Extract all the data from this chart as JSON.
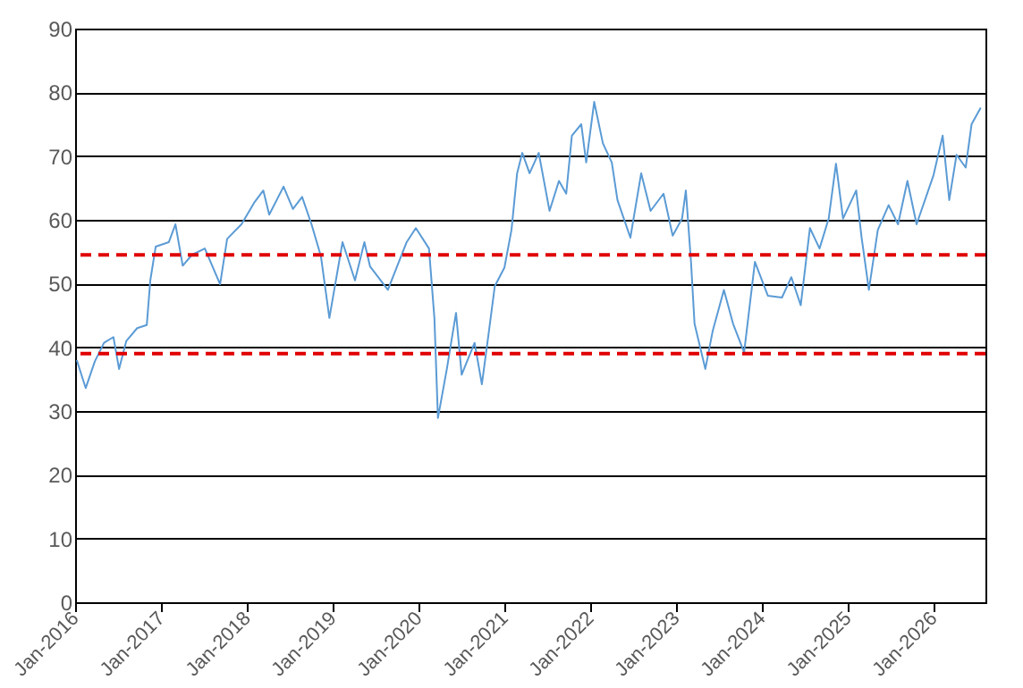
{
  "chart_data": {
    "type": "line",
    "x": [
      "2016-01-08",
      "2016-02-15",
      "2016-03-25",
      "2016-05-03",
      "2016-06-12",
      "2016-07-06",
      "2016-08-06",
      "2016-09-21",
      "2016-11-01",
      "2016-11-16",
      "2016-12-09",
      "2017-02-03",
      "2017-03-03",
      "2017-04-03",
      "2017-05-12",
      "2017-07-06",
      "2017-09-09",
      "2017-10-09",
      "2017-12-09",
      "2018-02-03",
      "2018-03-12",
      "2018-04-06",
      "2018-06-06",
      "2018-07-16",
      "2018-08-24",
      "2018-10-03",
      "2018-11-12",
      "2018-12-18",
      "2019-02-12",
      "2019-04-06",
      "2019-05-16",
      "2019-06-09",
      "2019-08-24",
      "2019-11-12",
      "2019-12-21",
      "2020-02-15",
      "2020-03-09",
      "2020-03-24",
      "2020-05-01",
      "2020-06-09",
      "2020-07-03",
      "2020-08-27",
      "2020-09-27",
      "2020-10-27",
      "2020-11-21",
      "2021-01-01",
      "2021-01-31",
      "2021-02-24",
      "2021-03-18",
      "2021-04-18",
      "2021-05-27",
      "2021-07-12",
      "2021-08-21",
      "2021-09-21",
      "2021-10-15",
      "2021-11-24",
      "2021-12-15",
      "2022-01-18",
      "2022-02-24",
      "2022-04-03",
      "2022-04-27",
      "2022-06-21",
      "2022-08-06",
      "2022-09-15",
      "2022-11-09",
      "2022-12-18",
      "2023-01-27",
      "2023-02-12",
      "2023-03-06",
      "2023-03-21",
      "2023-05-06",
      "2023-06-06",
      "2023-07-24",
      "2023-09-01",
      "2023-10-18",
      "2023-12-03",
      "2024-01-27",
      "2024-03-27",
      "2024-05-06",
      "2024-06-15",
      "2024-07-24",
      "2024-09-03",
      "2024-10-12",
      "2024-11-12",
      "2024-12-12",
      "2025-02-06",
      "2025-03-01",
      "2025-04-01",
      "2025-05-09",
      "2025-06-24",
      "2025-08-03",
      "2025-09-12",
      "2025-10-21",
      "2026-01-01",
      "2026-02-09",
      "2026-03-09",
      "2026-04-09",
      "2026-05-18",
      "2026-06-12",
      "2026-07-21"
    ],
    "series": [
      {
        "color": "#5b9bd5",
        "line_style": "solid",
        "values": [
          38,
          33.6,
          37.8,
          40.7,
          41.6,
          36.6,
          41,
          43,
          43.5,
          50.5,
          55.8,
          56.5,
          59.3,
          52.8,
          54.5,
          55.5,
          49.9,
          57,
          59.3,
          62.8,
          64.6,
          60.8,
          65.2,
          61.7,
          63.6,
          59.3,
          54.3,
          44.6,
          56.5,
          50.5,
          56.5,
          52.7,
          49,
          56.5,
          58.7,
          55.5,
          44.6,
          28.9,
          36.6,
          45.4,
          35.7,
          40.7,
          34.2,
          42.5,
          49.6,
          52.5,
          58.4,
          67.3,
          70.5,
          67.3,
          70.5,
          61.4,
          66.1,
          64.1,
          73.2,
          75,
          69,
          78.5,
          72,
          69,
          63.1,
          57.2,
          67.3,
          61.4,
          64.1,
          57.5,
          60.2,
          64.6,
          53.4,
          43.7,
          36.6,
          42.5,
          49,
          43.7,
          39.2,
          53.4,
          48.1,
          47.8,
          51,
          46.6,
          58.7,
          55.5,
          60.2,
          68.8,
          60.2,
          64.6,
          57.2,
          49,
          58.4,
          62.3,
          59.3,
          66.1,
          59.3,
          67,
          73.2,
          63.1,
          70.2,
          68.2,
          75,
          77.6
        ]
      }
    ],
    "xlim": [
      "2016-01-01",
      "2026-08-10"
    ],
    "xticks": [
      {
        "value": "2016-01-01",
        "label": "Jan-2016"
      },
      {
        "value": "2017-01-01",
        "label": "Jan-2017"
      },
      {
        "value": "2018-01-01",
        "label": "Jan-2018"
      },
      {
        "value": "2019-01-01",
        "label": "Jan-2019"
      },
      {
        "value": "2020-01-01",
        "label": "Jan-2020"
      },
      {
        "value": "2021-01-01",
        "label": "Jan-2021"
      },
      {
        "value": "2022-01-01",
        "label": "Jan-2022"
      },
      {
        "value": "2023-01-01",
        "label": "Jan-2023"
      },
      {
        "value": "2024-01-01",
        "label": "Jan-2024"
      },
      {
        "value": "2025-01-01",
        "label": "Jan-2025"
      },
      {
        "value": "2026-01-01",
        "label": "Jan-2026"
      }
    ],
    "ylim": [
      0,
      90
    ],
    "yticks": [
      0,
      10,
      20,
      30,
      40,
      50,
      60,
      70,
      80,
      90
    ],
    "grid": "y",
    "ref_lines": [
      {
        "axis": "y",
        "value": 54.5,
        "color": "#e00000",
        "line_style": "dashed"
      },
      {
        "axis": "y",
        "value": 39,
        "color": "#e00000",
        "line_style": "dashed"
      }
    ]
  }
}
